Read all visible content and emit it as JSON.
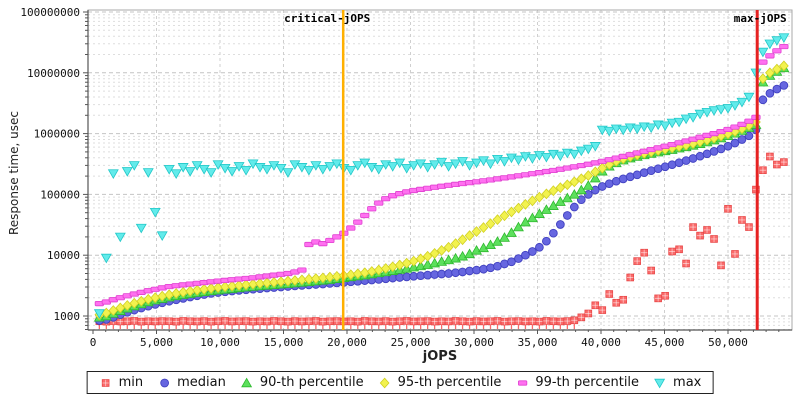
{
  "chart_data": {
    "type": "scatter",
    "title": "",
    "xlabel": "jOPS",
    "ylabel": "Response time, usec",
    "yscale": "log",
    "grid": true,
    "legend_position": "bottom",
    "xlim": [
      0,
      54900
    ],
    "ylim": [
      1000,
      100000000
    ],
    "x_ticks": [
      {
        "v": 0,
        "label": "0"
      },
      {
        "v": 5000,
        "label": "5,000"
      },
      {
        "v": 10000,
        "label": "10,000"
      },
      {
        "v": 15000,
        "label": "15,000"
      },
      {
        "v": 20000,
        "label": "20,000"
      },
      {
        "v": 25000,
        "label": "25,000"
      },
      {
        "v": 30000,
        "label": "30,000"
      },
      {
        "v": 35000,
        "label": "35,000"
      },
      {
        "v": 40000,
        "label": "40,000"
      },
      {
        "v": 45000,
        "label": "45,000"
      },
      {
        "v": 50000,
        "label": "50,000"
      }
    ],
    "y_ticks": [
      {
        "v": 1000,
        "label": "1000"
      },
      {
        "v": 10000,
        "label": "10000"
      },
      {
        "v": 100000,
        "label": "100000"
      },
      {
        "v": 1000000,
        "label": "1000000"
      },
      {
        "v": 10000000,
        "label": "10000000"
      },
      {
        "v": 100000000,
        "label": "100000000"
      }
    ],
    "annotations": [
      {
        "label": "critical-jOPS",
        "jops": 19700,
        "color": "#ffb000",
        "width": 2.5
      },
      {
        "label": "max-jOPS",
        "jops": 52300,
        "color": "#e62222",
        "width": 3
      }
    ],
    "jops": [
      500,
      1050,
      1600,
      2150,
      2700,
      3250,
      3800,
      4350,
      4900,
      5450,
      6000,
      6550,
      7100,
      7650,
      8200,
      8750,
      9300,
      9850,
      10400,
      10950,
      11500,
      12050,
      12600,
      13150,
      13700,
      14250,
      14800,
      15350,
      15900,
      16450,
      17000,
      17550,
      18100,
      18650,
      19200,
      19750,
      20300,
      20850,
      21400,
      21950,
      22500,
      23050,
      23600,
      24150,
      24700,
      25250,
      25800,
      26350,
      26900,
      27450,
      28000,
      28550,
      29100,
      29650,
      30200,
      30750,
      31300,
      31850,
      32400,
      32950,
      33500,
      34050,
      34600,
      35150,
      35700,
      36250,
      36800,
      37350,
      37900,
      38450,
      39000,
      39550,
      40100,
      40650,
      41200,
      41750,
      42300,
      42850,
      43400,
      43950,
      44500,
      45050,
      45600,
      46150,
      46700,
      47250,
      47800,
      48350,
      48900,
      49450,
      50000,
      50550,
      51100,
      51650,
      52200,
      52750,
      53300,
      53850,
      54400
    ],
    "series": [
      {
        "name": "min",
        "marker": "square",
        "color": "#fa6a6a",
        "edge": "#e84848",
        "values": [
          820,
          810,
          825,
          815,
          820,
          830,
          810,
          820,
          815,
          825,
          820,
          810,
          830,
          820,
          815,
          825,
          810,
          820,
          830,
          815,
          820,
          825,
          810,
          820,
          815,
          830,
          820,
          810,
          825,
          815,
          820,
          830,
          810,
          820,
          825,
          815,
          820,
          810,
          830,
          820,
          815,
          825,
          810,
          820,
          830,
          815,
          820,
          825,
          810,
          820,
          815,
          830,
          820,
          810,
          825,
          815,
          820,
          830,
          810,
          820,
          825,
          815,
          820,
          810,
          830,
          820,
          815,
          825,
          850,
          950,
          1100,
          1500,
          1250,
          2300,
          1650,
          1850,
          4300,
          8000,
          11000,
          5600,
          1950,
          2150,
          11500,
          12500,
          7300,
          29000,
          21000,
          26000,
          18500,
          6800,
          58000,
          10500,
          38000,
          29000,
          120000,
          250000,
          420000,
          310000,
          340000
        ]
      },
      {
        "name": "median",
        "marker": "circle",
        "color": "#6666e0",
        "edge": "#4040c0",
        "values": [
          840,
          880,
          950,
          1050,
          1150,
          1250,
          1350,
          1450,
          1550,
          1650,
          1750,
          1850,
          1950,
          2050,
          2150,
          2250,
          2350,
          2430,
          2500,
          2570,
          2640,
          2700,
          2760,
          2820,
          2880,
          2940,
          3000,
          3060,
          3120,
          3180,
          3240,
          3300,
          3360,
          3430,
          3500,
          3570,
          3650,
          3730,
          3820,
          3910,
          4000,
          4100,
          4200,
          4300,
          4400,
          4500,
          4600,
          4700,
          4800,
          4900,
          5000,
          5150,
          5300,
          5500,
          5700,
          5900,
          6200,
          6600,
          7200,
          7800,
          8800,
          10000,
          11500,
          13500,
          17000,
          23000,
          32000,
          45000,
          62000,
          82000,
          100000,
          118000,
          135000,
          150000,
          165000,
          180000,
          195000,
          210000,
          228000,
          246000,
          265000,
          285000,
          308000,
          332000,
          360000,
          390000,
          425000,
          465000,
          510000,
          560000,
          620000,
          700000,
          800000,
          920000,
          1150000,
          3600000,
          4600000,
          5400000,
          6200000
        ]
      },
      {
        "name": "90-th percentile",
        "marker": "triangle-up",
        "color": "#5ce05c",
        "edge": "#2eb82e",
        "values": [
          950,
          1000,
          1100,
          1220,
          1340,
          1460,
          1580,
          1700,
          1820,
          1930,
          2040,
          2140,
          2240,
          2330,
          2420,
          2500,
          2580,
          2660,
          2740,
          2820,
          2900,
          2980,
          3050,
          3120,
          3190,
          3260,
          3330,
          3400,
          3480,
          3560,
          3650,
          3750,
          3850,
          3950,
          4100,
          4250,
          4400,
          4550,
          4700,
          4900,
          5100,
          5300,
          5550,
          5800,
          6050,
          6350,
          6650,
          7000,
          7400,
          7850,
          8350,
          8900,
          9600,
          10500,
          12000,
          13200,
          14800,
          16800,
          19500,
          23500,
          29000,
          35000,
          41000,
          48000,
          56000,
          65000,
          76000,
          87000,
          100000,
          118000,
          140000,
          185000,
          240000,
          290000,
          330000,
          365000,
          395000,
          420000,
          445000,
          470000,
          495000,
          520000,
          545000,
          575000,
          605000,
          640000,
          680000,
          725000,
          780000,
          845000,
          920000,
          1010000,
          1120000,
          1250000,
          1400000,
          7000000,
          9000000,
          10500000,
          12000000
        ]
      },
      {
        "name": "95-th percentile",
        "marker": "diamond",
        "color": "#f2f24e",
        "edge": "#d0d020",
        "values": [
          1050,
          1120,
          1230,
          1360,
          1490,
          1620,
          1750,
          1880,
          2000,
          2120,
          2240,
          2350,
          2460,
          2560,
          2660,
          2750,
          2840,
          2930,
          3020,
          3100,
          3180,
          3260,
          3340,
          3420,
          3500,
          3580,
          3660,
          3750,
          3840,
          3930,
          4030,
          4130,
          4240,
          4360,
          4490,
          4630,
          4780,
          4950,
          5150,
          5400,
          5700,
          6050,
          6450,
          6900,
          7400,
          8000,
          8700,
          9600,
          10700,
          12000,
          13500,
          15500,
          18000,
          21000,
          24500,
          28500,
          33000,
          38500,
          44500,
          51500,
          59500,
          68500,
          78500,
          90000,
          102000,
          115000,
          129000,
          144000,
          161000,
          181000,
          204000,
          235000,
          270000,
          310000,
          350000,
          385000,
          415000,
          445000,
          472000,
          498000,
          525000,
          552000,
          580000,
          610000,
          645000,
          685000,
          730000,
          780000,
          840000,
          910000,
          990000,
          1080000,
          1200000,
          1350000,
          1550000,
          8000000,
          10000000,
          11500000,
          13000000
        ]
      },
      {
        "name": "99-th percentile",
        "marker": "hbar",
        "color": "#ff70f0",
        "edge": "#e040d0",
        "values": [
          1600,
          1700,
          1850,
          2000,
          2150,
          2300,
          2450,
          2600,
          2750,
          2900,
          3050,
          3150,
          3250,
          3350,
          3450,
          3550,
          3650,
          3750,
          3850,
          3950,
          4050,
          4150,
          4250,
          4400,
          4550,
          4700,
          4850,
          5000,
          5300,
          5700,
          15000,
          16500,
          15500,
          17500,
          20000,
          23000,
          28000,
          35000,
          45000,
          58000,
          72000,
          85000,
          95000,
          103000,
          110000,
          116000,
          121000,
          126000,
          131000,
          136000,
          141000,
          146000,
          151000,
          156000,
          161000,
          167000,
          173000,
          180000,
          187000,
          194000,
          202000,
          210000,
          219000,
          228000,
          238000,
          248000,
          259000,
          271000,
          284000,
          298000,
          313000,
          330000,
          350000,
          372000,
          396000,
          422000,
          450000,
          480000,
          512000,
          546000,
          582000,
          620000,
          660000,
          705000,
          755000,
          810000,
          870000,
          935000,
          1000000,
          1080000,
          1170000,
          1280000,
          1420000,
          1600000,
          1850000,
          15000000,
          19000000,
          23000000,
          27000000
        ]
      },
      {
        "name": "max",
        "marker": "triangle-down",
        "color": "#62ebeb",
        "edge": "#22c8c8",
        "values": [
          1100,
          9000,
          220000,
          20000,
          240000,
          300000,
          28000,
          230000,
          51000,
          21000,
          260000,
          220000,
          280000,
          240000,
          300000,
          260000,
          230000,
          310000,
          270000,
          240000,
          290000,
          250000,
          320000,
          280000,
          260000,
          300000,
          270000,
          230000,
          310000,
          280000,
          250000,
          300000,
          260000,
          290000,
          320000,
          270000,
          250000,
          300000,
          330000,
          280000,
          260000,
          310000,
          290000,
          330000,
          270000,
          300000,
          320000,
          280000,
          310000,
          340000,
          290000,
          320000,
          350000,
          300000,
          330000,
          360000,
          320000,
          380000,
          350000,
          400000,
          370000,
          420000,
          390000,
          440000,
          410000,
          460000,
          430000,
          480000,
          460000,
          520000,
          560000,
          620000,
          1150000,
          1100000,
          1200000,
          1150000,
          1250000,
          1200000,
          1300000,
          1250000,
          1400000,
          1350000,
          1500000,
          1550000,
          1750000,
          1850000,
          2100000,
          2250000,
          2400000,
          2500000,
          2600000,
          2900000,
          3300000,
          4000000,
          10000000,
          22000000,
          30000000,
          34000000,
          38000000
        ]
      }
    ]
  }
}
